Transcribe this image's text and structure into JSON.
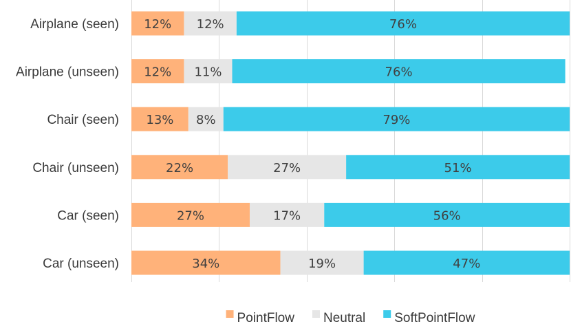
{
  "chart_data": {
    "type": "bar",
    "orientation": "horizontal",
    "stacked": true,
    "normalized": true,
    "categories": [
      "Airplane (seen)",
      "Airplane (unseen)",
      "Chair (seen)",
      "Chair (unseen)",
      "Car (seen)",
      "Car (unseen)"
    ],
    "series": [
      {
        "name": "PointFlow",
        "color": "#ffb27a",
        "values": [
          12,
          12,
          13,
          22,
          27,
          34
        ],
        "labels": [
          "12%",
          "12%",
          "13%",
          "22%",
          "27%",
          "34%"
        ]
      },
      {
        "name": "Neutral",
        "color": "#e6e6e6",
        "values": [
          12,
          11,
          8,
          27,
          17,
          19
        ],
        "labels": [
          "12%",
          "11%",
          "8%",
          "27%",
          "17%",
          "19%"
        ]
      },
      {
        "name": "SoftPointFlow",
        "color": "#3ccbea",
        "values": [
          76,
          76,
          79,
          51,
          56,
          47
        ],
        "labels": [
          "76%",
          "76%",
          "79%",
          "51%",
          "56%",
          "47%"
        ]
      }
    ],
    "xlim": [
      0,
      100
    ],
    "grid": true,
    "legend_position": "bottom"
  }
}
